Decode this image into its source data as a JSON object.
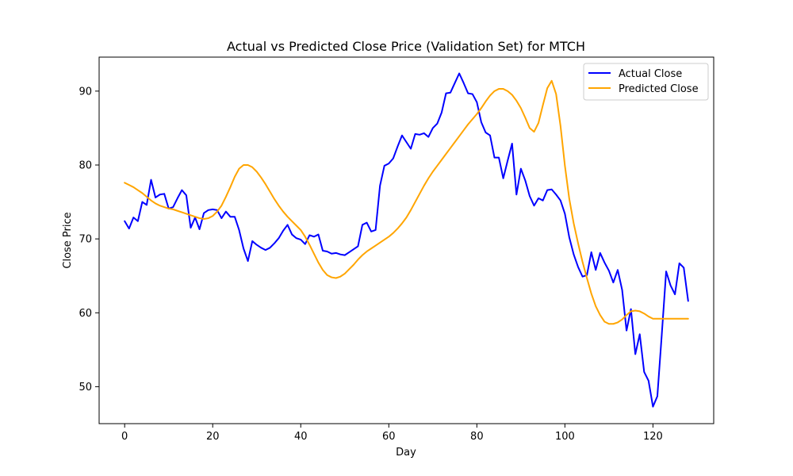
{
  "chart_data": {
    "type": "line",
    "title": "Actual vs Predicted Close Price (Validation Set) for MTCH",
    "xlabel": "Day",
    "ylabel": "Close Price",
    "xlim": [
      -5.8,
      133.8
    ],
    "ylim": [
      45.0,
      94.6
    ],
    "xticks": [
      0,
      20,
      40,
      60,
      80,
      100,
      120
    ],
    "xtick_labels": [
      "0",
      "20",
      "40",
      "60",
      "80",
      "100",
      "120"
    ],
    "yticks": [
      50,
      60,
      70,
      80,
      90
    ],
    "ytick_labels": [
      "50",
      "60",
      "70",
      "80",
      "90"
    ],
    "grid": false,
    "legend_position": "top-right",
    "series": [
      {
        "name": "Actual Close",
        "color": "#0000ff",
        "values": [
          72.4,
          71.4,
          72.9,
          72.4,
          75.0,
          74.6,
          78.0,
          75.6,
          76.0,
          76.1,
          74.1,
          74.3,
          75.5,
          76.6,
          75.9,
          71.5,
          72.9,
          71.3,
          73.5,
          73.9,
          74.0,
          73.9,
          72.8,
          73.7,
          73.0,
          73.0,
          71.2,
          68.7,
          67.0,
          69.7,
          69.2,
          68.8,
          68.5,
          68.8,
          69.4,
          70.1,
          71.1,
          71.9,
          70.6,
          70.1,
          69.9,
          69.3,
          70.5,
          70.3,
          70.6,
          68.4,
          68.3,
          68.0,
          68.1,
          67.9,
          67.8,
          68.2,
          68.6,
          69.0,
          71.9,
          72.2,
          71.0,
          71.2,
          77.2,
          79.9,
          80.2,
          80.9,
          82.5,
          84.0,
          83.1,
          82.2,
          84.2,
          84.1,
          84.3,
          83.8,
          85.0,
          85.6,
          87.1,
          89.7,
          89.8,
          91.1,
          92.4,
          91.1,
          89.7,
          89.6,
          88.5,
          85.8,
          84.4,
          84.0,
          81.0,
          81.0,
          78.2,
          80.6,
          82.9,
          76.0,
          79.5,
          77.9,
          75.8,
          74.5,
          75.5,
          75.2,
          76.6,
          76.7,
          76.0,
          75.2,
          73.4,
          70.2,
          67.9,
          66.2,
          64.9,
          65.1,
          68.2,
          65.8,
          68.1,
          66.8,
          65.7,
          64.1,
          65.8,
          63.1,
          57.6,
          60.5,
          54.4,
          57.1,
          52.0,
          50.8,
          47.3,
          48.7,
          57.0,
          65.6,
          63.7,
          62.5,
          66.7,
          66.1,
          61.6
        ]
      },
      {
        "name": "Predicted Close",
        "color": "#ffa500",
        "values": [
          77.6,
          77.3,
          77.0,
          76.6,
          76.2,
          75.7,
          75.2,
          74.8,
          74.5,
          74.3,
          74.1,
          74.0,
          73.8,
          73.6,
          73.4,
          73.2,
          73.0,
          72.8,
          72.7,
          72.8,
          73.1,
          73.7,
          74.5,
          75.7,
          77.0,
          78.4,
          79.5,
          80.0,
          80.0,
          79.7,
          79.1,
          78.3,
          77.4,
          76.4,
          75.4,
          74.5,
          73.7,
          73.0,
          72.4,
          71.8,
          71.2,
          70.3,
          69.2,
          68.0,
          66.8,
          65.8,
          65.1,
          64.8,
          64.7,
          64.9,
          65.3,
          65.9,
          66.5,
          67.2,
          67.8,
          68.3,
          68.7,
          69.1,
          69.5,
          69.9,
          70.3,
          70.8,
          71.4,
          72.1,
          72.9,
          73.9,
          75.0,
          76.1,
          77.2,
          78.2,
          79.1,
          79.9,
          80.7,
          81.5,
          82.3,
          83.1,
          83.9,
          84.7,
          85.5,
          86.2,
          86.9,
          87.7,
          88.6,
          89.4,
          90.0,
          90.3,
          90.3,
          90.0,
          89.5,
          88.7,
          87.7,
          86.4,
          85.0,
          84.5,
          85.7,
          88.1,
          90.4,
          91.4,
          89.6,
          85.3,
          79.9,
          75.4,
          72.1,
          69.4,
          66.9,
          64.7,
          62.6,
          60.9,
          59.7,
          58.8,
          58.5,
          58.5,
          58.7,
          59.1,
          59.7,
          60.2,
          60.3,
          60.2,
          59.9,
          59.5,
          59.2,
          59.2,
          59.2,
          59.2,
          59.2,
          59.2,
          59.2,
          59.2,
          59.2
        ]
      }
    ]
  }
}
